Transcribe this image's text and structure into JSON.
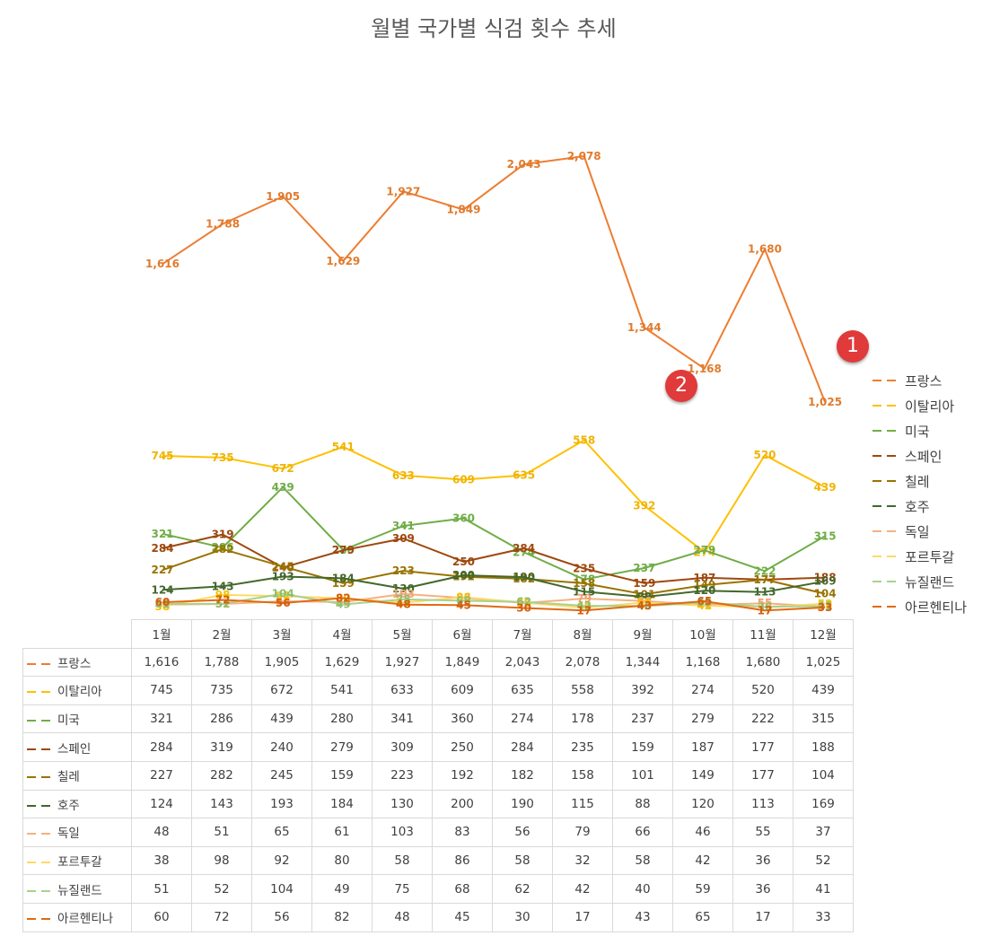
{
  "chart_data": {
    "type": "line",
    "title": "월별 국가별 식검 횟수 추세",
    "categories": [
      "1월",
      "2월",
      "3월",
      "4월",
      "5월",
      "6월",
      "7월",
      "8월",
      "9월",
      "10월",
      "11월",
      "12월"
    ],
    "series": [
      {
        "name": "프랑스",
        "color": "#ED7D31",
        "label_color": "#E07B2E",
        "values": [
          1616,
          1788,
          1905,
          1629,
          1927,
          1849,
          2043,
          2078,
          1344,
          1168,
          1680,
          1025
        ],
        "labels": [
          "1,616",
          "1,788",
          "1,905",
          "1,629",
          "1,927",
          "1,849",
          "2,043",
          "2,078",
          "1,344",
          "1,168",
          "1,680",
          "1,025"
        ]
      },
      {
        "name": "이탈리아",
        "color": "#FFC000",
        "label_color": "#F0B400",
        "values": [
          745,
          735,
          672,
          541,
          633,
          609,
          635,
          558,
          392,
          274,
          520,
          439
        ],
        "labels": [
          "745",
          "735",
          "672",
          "541",
          "633",
          "609",
          "635",
          "558",
          "392",
          "274",
          "520",
          "439"
        ]
      },
      {
        "name": "미국",
        "color": "#70AD47",
        "label_color": "#70AD47",
        "values": [
          321,
          286,
          439,
          280,
          341,
          360,
          274,
          178,
          237,
          279,
          222,
          315
        ],
        "labels": [
          "321",
          "286",
          "439",
          "280",
          "341",
          "360",
          "274",
          "178",
          "237",
          "279",
          "222",
          "315"
        ]
      },
      {
        "name": "스페인",
        "color": "#9E480E",
        "label_color": "#9E480E",
        "values": [
          284,
          319,
          240,
          279,
          309,
          250,
          284,
          235,
          159,
          187,
          177,
          188
        ],
        "labels": [
          "284",
          "319",
          "240",
          "279",
          "309",
          "250",
          "284",
          "235",
          "159",
          "187",
          "177",
          "188"
        ]
      },
      {
        "name": "칠레",
        "color": "#997300",
        "label_color": "#997300",
        "values": [
          227,
          282,
          245,
          159,
          223,
          192,
          182,
          158,
          101,
          149,
          177,
          104
        ],
        "labels": [
          "227",
          "282",
          "245",
          "159",
          "223",
          "192",
          "182",
          "158",
          "101",
          "149",
          "177",
          "104"
        ]
      },
      {
        "name": "호주",
        "color": "#43682B",
        "label_color": "#43682B",
        "values": [
          124,
          143,
          193,
          184,
          130,
          200,
          190,
          115,
          88,
          120,
          113,
          169
        ],
        "labels": [
          "124",
          "143",
          "193",
          "184",
          "130",
          "200",
          "190",
          "115",
          "88",
          "120",
          "113",
          "169"
        ]
      },
      {
        "name": "독일",
        "color": "#F4B183",
        "label_color": "#F4A070",
        "values": [
          48,
          51,
          65,
          61,
          103,
          83,
          56,
          79,
          66,
          46,
          55,
          37
        ],
        "labels": [
          "48",
          "51",
          "65",
          "61",
          "103",
          "83",
          "56",
          "79",
          "66",
          "46",
          "55",
          "37"
        ]
      },
      {
        "name": "포르투갈",
        "color": "#FFD966",
        "label_color": "#F2C200",
        "values": [
          38,
          98,
          92,
          80,
          58,
          86,
          58,
          32,
          58,
          42,
          36,
          52
        ],
        "labels": [
          "38",
          "98",
          "92",
          "80",
          "58",
          "86",
          "58",
          "32",
          "58",
          "42",
          "36",
          "52"
        ]
      },
      {
        "name": "뉴질랜드",
        "color": "#A9D18E",
        "label_color": "#8DBF6E",
        "values": [
          51,
          52,
          104,
          49,
          75,
          68,
          62,
          42,
          40,
          59,
          36,
          41
        ],
        "labels": [
          "51",
          "52",
          "104",
          "49",
          "75",
          "68",
          "62",
          "42",
          "40",
          "59",
          "36",
          "41"
        ]
      },
      {
        "name": "아르헨티나",
        "color": "#E06A12",
        "label_color": "#D35F0E",
        "values": [
          60,
          72,
          56,
          82,
          48,
          45,
          30,
          17,
          43,
          65,
          17,
          33
        ],
        "labels": [
          "60",
          "72",
          "56",
          "82",
          "48",
          "45",
          "30",
          "17",
          "43",
          "65",
          "17",
          "33"
        ]
      }
    ],
    "legend_position": "right",
    "grid": false
  },
  "badges": [
    {
      "text": "1",
      "color": "#E03A3A"
    },
    {
      "text": "2",
      "color": "#E03A3A"
    }
  ]
}
